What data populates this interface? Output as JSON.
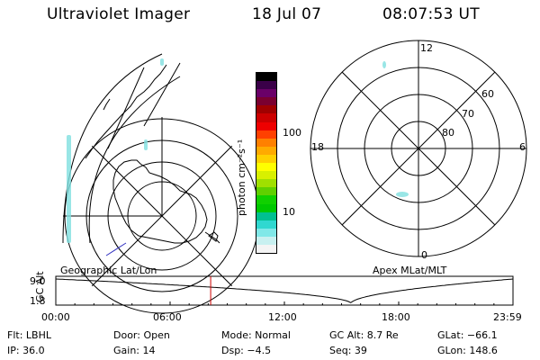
{
  "header": {
    "title": "Ultraviolet Imager",
    "date": "18 Jul 07",
    "time": "08:07:53 UT"
  },
  "colorbar": {
    "unit_label": "photon cm⁻²s⁻¹",
    "ticks": [
      {
        "label": "100",
        "value": 100
      },
      {
        "label": "10",
        "value": 10
      }
    ],
    "colors": [
      "#000000",
      "#3a0048",
      "#6a0068",
      "#7a0030",
      "#a00000",
      "#cc0000",
      "#ee0000",
      "#ff4000",
      "#ff8000",
      "#ffaa00",
      "#ffd000",
      "#ffff00",
      "#d8f000",
      "#a0e000",
      "#60d000",
      "#10d000",
      "#00c800",
      "#00c090",
      "#30d8d0",
      "#80e8e8",
      "#c8f0f0",
      "#f4f4f4"
    ]
  },
  "left_map": {
    "label": "Geographic Lat/Lon"
  },
  "right_map": {
    "label": "Apex MLat/MLT",
    "mlt_labels": {
      "top": "12",
      "left": "18",
      "right": "6",
      "bottom": "0"
    },
    "mlat_labels": [
      "60",
      "70",
      "80"
    ]
  },
  "altitude_plot": {
    "ylabel": "GC Alt",
    "y_ticks": [
      "9.0",
      "1.8"
    ],
    "x_ticks": [
      "00:00",
      "06:00",
      "12:00",
      "18:00",
      "23:59"
    ],
    "x_range_hours": [
      0,
      24
    ],
    "y_range_re": [
      1.8,
      9.0
    ],
    "marker_hour": 8.13,
    "min_hour": 15.5,
    "marker_color": "#cc0000"
  },
  "status": {
    "filter": "Flt: LBHL",
    "door": "Door: Open",
    "mode": "Mode: Normal",
    "gc_alt": "GC Alt: 8.7 Re",
    "glat": "GLat: −66.1",
    "ip": "IP: 36.0",
    "gain": "Gain: 14",
    "dsp": "Dsp:   −4.5",
    "seq": "Seq: 39",
    "glon": "GLon: 148.6"
  }
}
